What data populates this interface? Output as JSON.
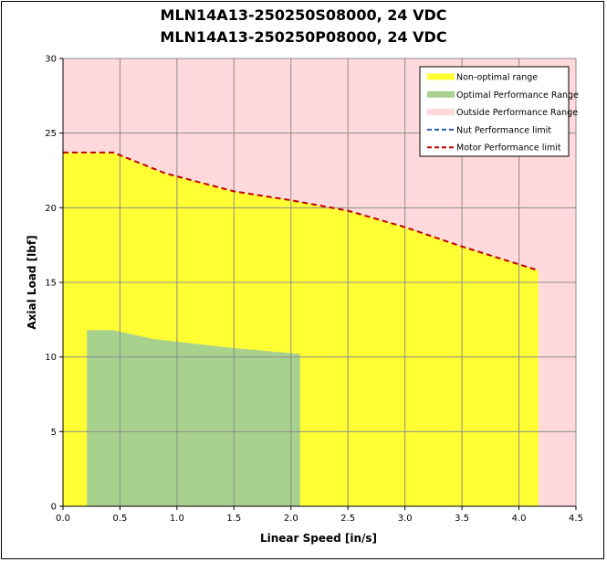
{
  "chart_data": {
    "type": "area",
    "title_lines": [
      "MLN14A13-250250S08000, 24 VDC",
      "MLN14A13-250250P08000, 24 VDC"
    ],
    "xlabel": "Linear Speed [in/s]",
    "ylabel": "Axial Load [lbf]",
    "xlim": [
      0,
      4.5
    ],
    "ylim": [
      0,
      30
    ],
    "x_ticks": [
      "0.0",
      "0.5",
      "1.0",
      "1.5",
      "2.0",
      "2.5",
      "3.0",
      "3.5",
      "4.0",
      "4.5"
    ],
    "y_ticks": [
      "0",
      "5",
      "10",
      "15",
      "20",
      "25",
      "30"
    ],
    "grid": true,
    "legend_position": "top-right",
    "series": [
      {
        "name": "Non-optimal range",
        "style": "area",
        "color": "#ffff33",
        "points": [
          [
            0.0,
            23.7
          ],
          [
            0.44,
            23.7
          ],
          [
            0.9,
            22.3
          ],
          [
            1.5,
            21.1
          ],
          [
            2.0,
            20.5
          ],
          [
            2.5,
            19.8
          ],
          [
            3.0,
            18.7
          ],
          [
            3.5,
            17.4
          ],
          [
            4.17,
            15.8
          ]
        ]
      },
      {
        "name": "Optimal Performance Range",
        "style": "area",
        "color": "#a9d18e",
        "points": [
          [
            0.21,
            11.8
          ],
          [
            0.44,
            11.8
          ],
          [
            0.8,
            11.2
          ],
          [
            1.5,
            10.6
          ],
          [
            2.08,
            10.2
          ]
        ]
      },
      {
        "name": "Outside Performance Range",
        "style": "area",
        "color": "#ffd9dc",
        "points": [
          [
            0.0,
            30
          ],
          [
            4.5,
            30
          ]
        ]
      },
      {
        "name": "Nut Performance limit",
        "style": "dashed-line",
        "color": "#2e5da8",
        "points": []
      },
      {
        "name": "Motor Performance limit",
        "style": "dashed-line",
        "color": "#c00000",
        "points": [
          [
            0.0,
            23.7
          ],
          [
            0.44,
            23.7
          ],
          [
            0.9,
            22.3
          ],
          [
            1.5,
            21.1
          ],
          [
            2.0,
            20.5
          ],
          [
            2.5,
            19.8
          ],
          [
            3.0,
            18.7
          ],
          [
            3.5,
            17.4
          ],
          [
            4.17,
            15.8
          ]
        ]
      }
    ]
  }
}
